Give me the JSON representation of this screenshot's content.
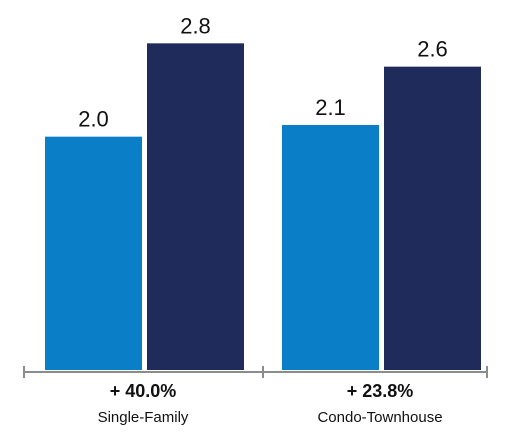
{
  "chart_data": {
    "type": "bar",
    "categories": [
      "Single-Family",
      "Condo-Townhouse"
    ],
    "series": [
      {
        "values": [
          2.0,
          2.1
        ],
        "color": "#0a7fc7"
      },
      {
        "values": [
          2.8,
          2.6
        ],
        "color": "#1f2b5a"
      }
    ],
    "value_labels": [
      [
        "2.0",
        "2.1"
      ],
      [
        "2.8",
        "2.6"
      ]
    ],
    "change_labels": [
      "+ 40.0%",
      "+ 23.8%"
    ],
    "ylim": [
      0,
      3.0
    ],
    "grid": false,
    "legend": "none",
    "axis_color": "#8c8c8c"
  }
}
